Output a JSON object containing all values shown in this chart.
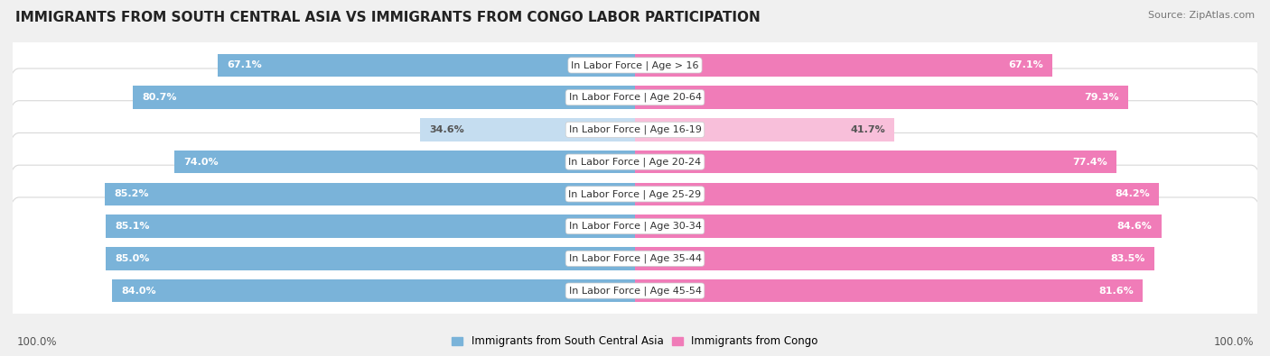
{
  "title": "IMMIGRANTS FROM SOUTH CENTRAL ASIA VS IMMIGRANTS FROM CONGO LABOR PARTICIPATION",
  "source": "Source: ZipAtlas.com",
  "categories": [
    "In Labor Force | Age > 16",
    "In Labor Force | Age 20-64",
    "In Labor Force | Age 16-19",
    "In Labor Force | Age 20-24",
    "In Labor Force | Age 25-29",
    "In Labor Force | Age 30-34",
    "In Labor Force | Age 35-44",
    "In Labor Force | Age 45-54"
  ],
  "left_values": [
    67.1,
    80.7,
    34.6,
    74.0,
    85.2,
    85.1,
    85.0,
    84.0
  ],
  "right_values": [
    67.1,
    79.3,
    41.7,
    77.4,
    84.2,
    84.6,
    83.5,
    81.6
  ],
  "left_color_strong": "#7ab3d9",
  "left_color_light": "#c5ddf0",
  "right_color_strong": "#f07cb8",
  "right_color_light": "#f8bfda",
  "left_label": "Immigrants from South Central Asia",
  "right_label": "Immigrants from Congo",
  "max_value": 100.0,
  "bg_color": "#f0f0f0",
  "row_bg_color": "#ffffff",
  "row_bg_border": "#d8d8d8",
  "title_fontsize": 11,
  "cat_fontsize": 8,
  "value_fontsize": 8,
  "footer_fontsize": 8.5,
  "light_rows": [
    2
  ]
}
